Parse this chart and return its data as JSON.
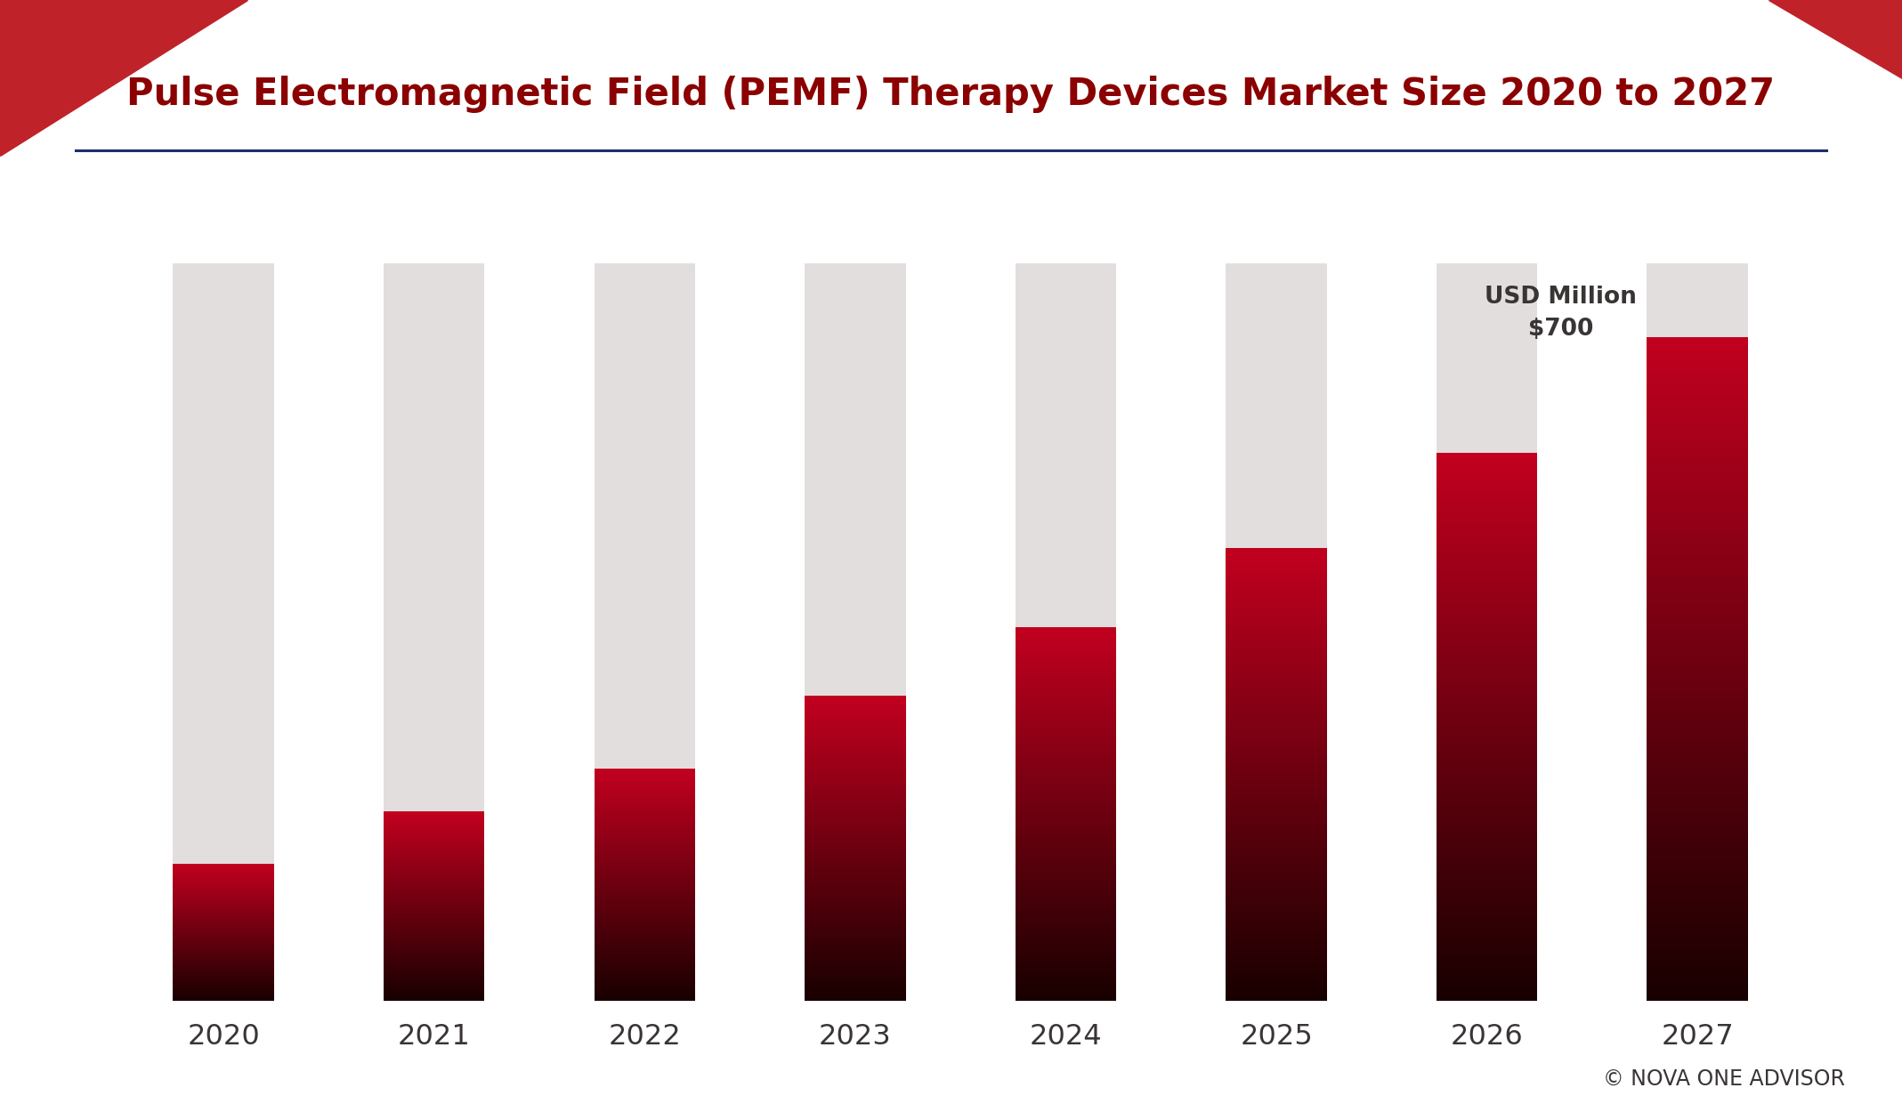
{
  "title": "Pulse Electromagnetic Field (PEMF) Therapy Devices Market Size 2020 to 2027",
  "years": [
    "2020",
    "2021",
    "2022",
    "2023",
    "2024",
    "2025",
    "2026",
    "2027"
  ],
  "values": [
    130,
    180,
    220,
    290,
    355,
    430,
    520,
    630
  ],
  "max_bar_height": 700,
  "annotation_text": "USD Million\n$700",
  "bar_bg_color": "#e2dede",
  "bar_gradient_top": "#c1001f",
  "bar_gradient_bottom": "#180000",
  "title_color": "#8b0000",
  "corner_color": "#c0222a",
  "line_color": "#1e2d6b",
  "text_color": "#3a3535",
  "bg_color": "#ffffff",
  "copyright_text": "© NOVA ONE ADVISOR",
  "title_fontsize": 30,
  "annotation_fontsize": 19,
  "tick_fontsize": 23,
  "copyright_fontsize": 17,
  "bar_width": 0.48,
  "ylim": [
    0,
    760
  ],
  "n_grad": 300
}
